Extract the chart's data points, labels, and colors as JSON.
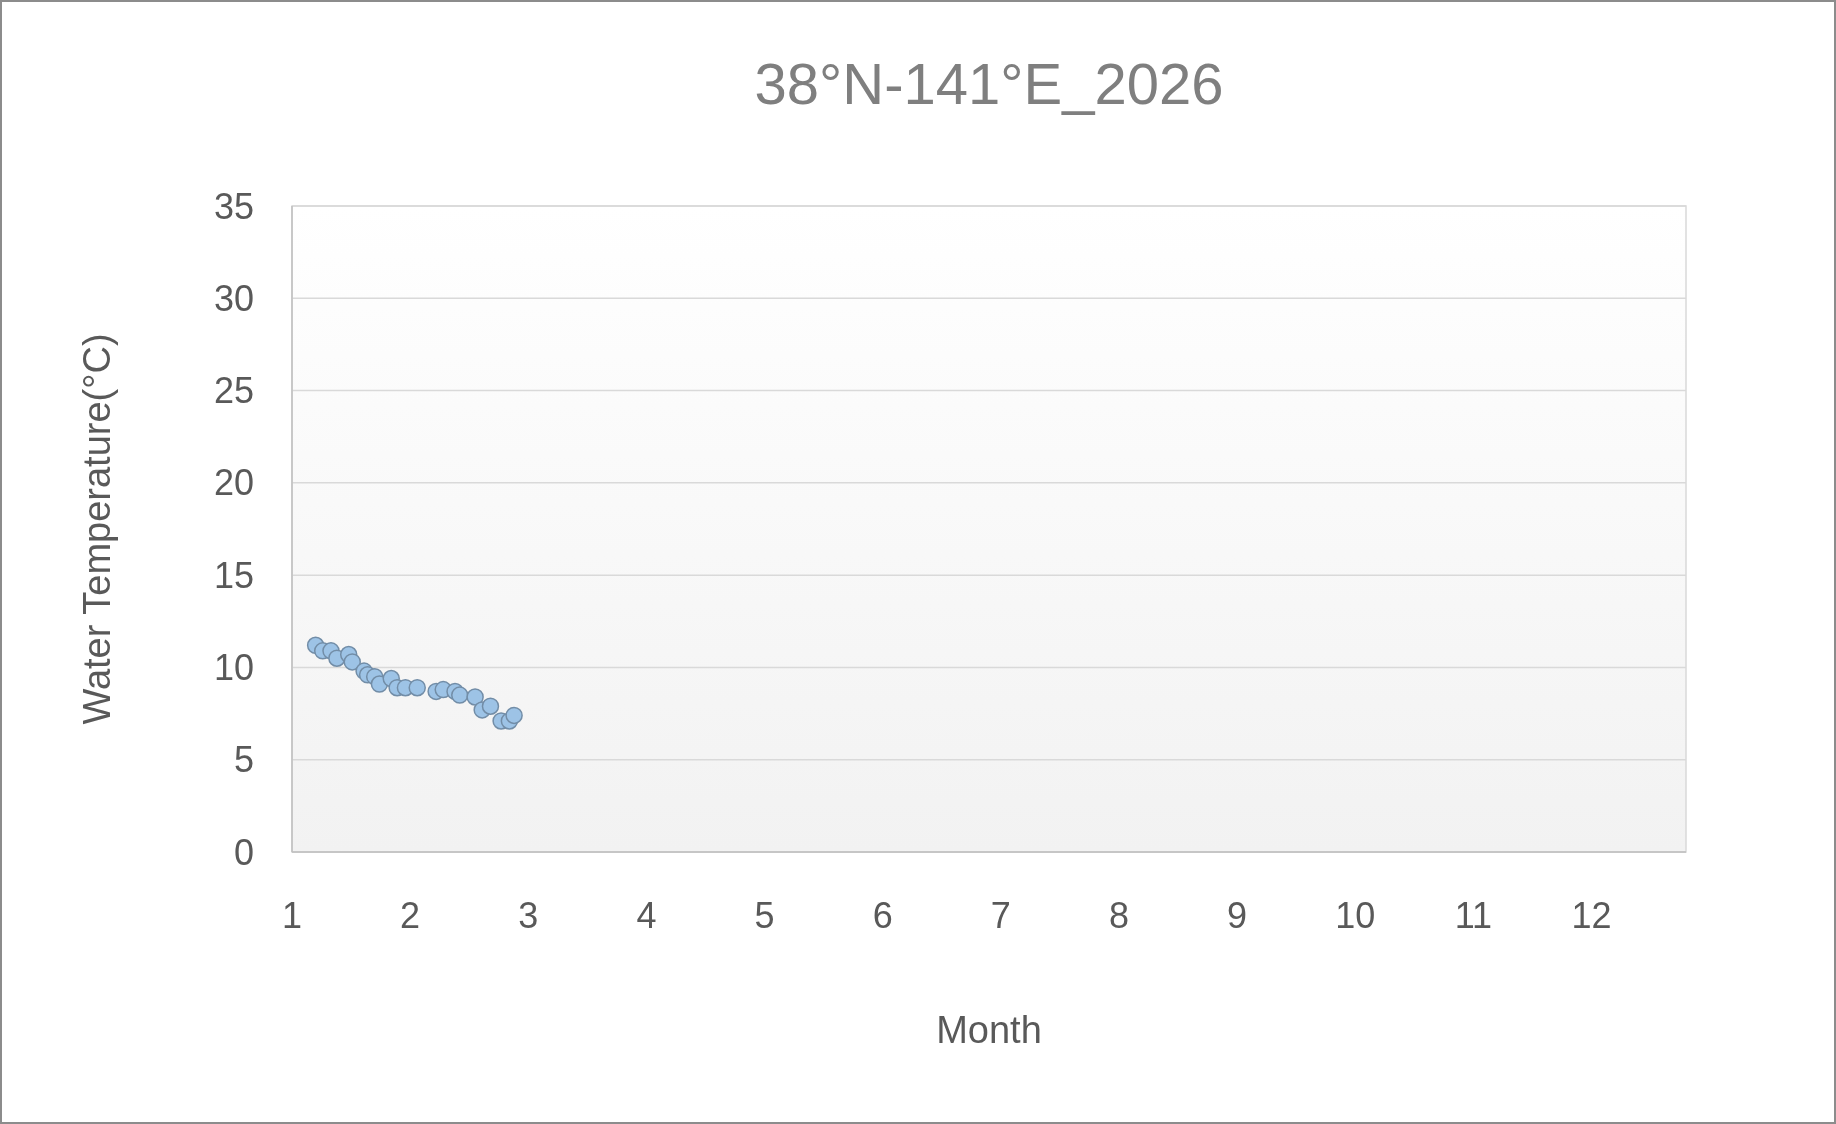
{
  "chart_data": {
    "type": "scatter",
    "title": "38°N-141°E_2026",
    "xlabel": "Month",
    "ylabel": "Water Temperature(°C)",
    "xlim": [
      1,
      12.8
    ],
    "xticks": [
      1,
      2,
      3,
      4,
      5,
      6,
      7,
      8,
      9,
      10,
      11,
      12
    ],
    "ylim": [
      0,
      35
    ],
    "yticks": [
      0,
      5,
      10,
      15,
      20,
      25,
      30,
      35
    ],
    "grid": "y",
    "marker": "circle",
    "series": [
      {
        "color": "#9dc3e6",
        "x": [
          1.2,
          1.26,
          1.33,
          1.38,
          1.48,
          1.51,
          1.61,
          1.64,
          1.7,
          1.74,
          1.84,
          1.89,
          1.96,
          2.06,
          2.22,
          2.28,
          2.38,
          2.42,
          2.55,
          2.61,
          2.68,
          2.77,
          2.84,
          2.88
        ],
        "values": [
          11.2,
          10.9,
          10.9,
          10.5,
          10.7,
          10.3,
          9.8,
          9.6,
          9.5,
          9.1,
          9.4,
          8.9,
          8.9,
          8.9,
          8.7,
          8.8,
          8.7,
          8.5,
          8.4,
          7.7,
          7.9,
          7.1,
          7.1,
          7.4
        ]
      }
    ]
  }
}
